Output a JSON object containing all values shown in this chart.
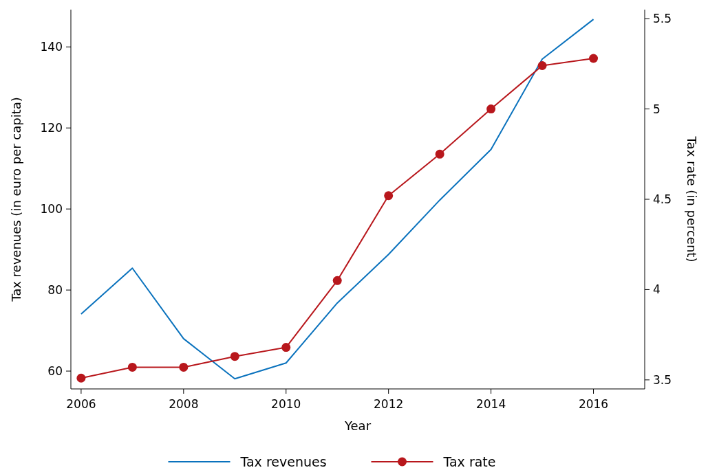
{
  "chart_data": {
    "type": "line",
    "xlabel": "Year",
    "ylabel": "Tax revenues (in euro per capita)",
    "y2label": "Tax rate (in percent)",
    "x": [
      2006,
      2007,
      2008,
      2009,
      2010,
      2011,
      2012,
      2013,
      2014,
      2015,
      2016
    ],
    "series": [
      {
        "name": "Tax revenues",
        "color": "#0a72bd",
        "values": [
          74.1,
          85.4,
          68,
          58.1,
          62,
          76.8,
          88.8,
          102.2,
          114.7,
          137,
          146.8
        ],
        "marker": "none"
      },
      {
        "name": "Tax rate",
        "color": "#b8171c",
        "axis": "y2",
        "marker": "circle",
        "values": [
          3.51,
          3.57,
          3.57,
          3.63,
          3.68,
          4.05,
          4.52,
          4.75,
          5.0,
          5.24,
          5.28
        ]
      }
    ],
    "xlim": [
      2005.8,
      2017
    ],
    "xticks": [
      2006,
      2008,
      2010,
      2012,
      2014,
      2016
    ],
    "ylim": [
      55.6,
      149.2
    ],
    "yticks": [
      60,
      80,
      100,
      120,
      140
    ],
    "y2lim": [
      3.45,
      5.55
    ],
    "y2ticks": [
      {
        "value": 3.5,
        "label": "3.5"
      },
      {
        "value": 4,
        "label": "4"
      },
      {
        "value": 4.5,
        "label": "4.5"
      },
      {
        "value": 5,
        "label": "5"
      },
      {
        "value": 5.5,
        "label": "5.5"
      }
    ],
    "grid": false,
    "legend": "bottom",
    "line_style": "solid"
  }
}
